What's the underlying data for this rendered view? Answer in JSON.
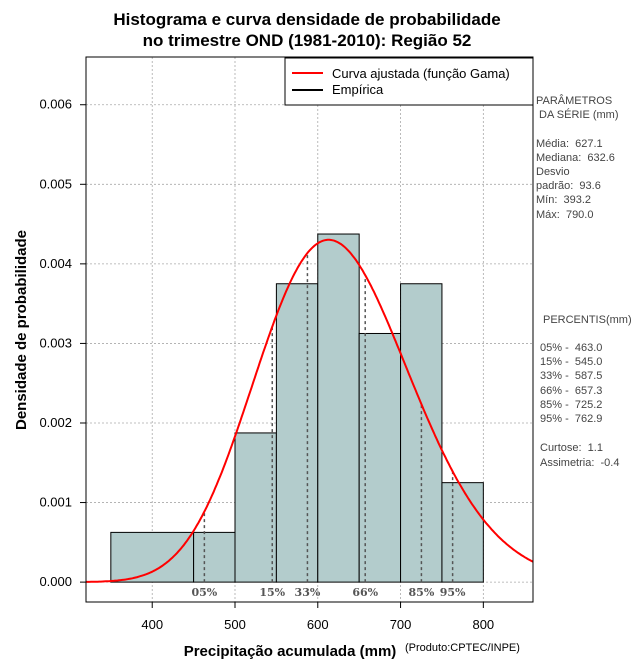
{
  "chart_data": {
    "type": "histogram",
    "title": [
      "Histograma e curva densidade de probabilidade",
      "no trimestre OND (1981-2010): Região 52"
    ],
    "xlabel": "Precipitação acumulada (mm)",
    "ylabel": "Densidade de probabilidade",
    "credit": "(Produto:CPTEC/INPE)",
    "xlim": [
      320,
      860
    ],
    "ylim": [
      -0.00025,
      0.0066
    ],
    "xticks": [
      400,
      500,
      600,
      700,
      800
    ],
    "yticks": [
      0.0,
      0.001,
      0.002,
      0.003,
      0.004,
      0.005,
      0.006
    ],
    "ytick_labels": [
      "0.000",
      "0.001",
      "0.002",
      "0.003",
      "0.004",
      "0.005",
      "0.006"
    ],
    "bins": [
      {
        "start": 350,
        "end": 450,
        "density": 0.000625
      },
      {
        "start": 450,
        "end": 500,
        "density": 0.000625
      },
      {
        "start": 500,
        "end": 550,
        "density": 0.001875
      },
      {
        "start": 550,
        "end": 600,
        "density": 0.00375
      },
      {
        "start": 600,
        "end": 650,
        "density": 0.004375
      },
      {
        "start": 650,
        "end": 700,
        "density": 0.003125
      },
      {
        "start": 700,
        "end": 750,
        "density": 0.00375
      },
      {
        "start": 750,
        "end": 800,
        "density": 0.00125
      }
    ],
    "fitted_curve": {
      "distribution": "gamma",
      "mean": 627.1,
      "sd": 93.6,
      "mode_density": 0.00431
    },
    "percentiles": [
      {
        "label": "05%",
        "value": 463.0
      },
      {
        "label": "15%",
        "value": 545.0
      },
      {
        "label": "33%",
        "value": 587.5
      },
      {
        "label": "66%",
        "value": 657.3
      },
      {
        "label": "85%",
        "value": 725.2
      },
      {
        "label": "95%",
        "value": 762.9
      }
    ],
    "legend": [
      {
        "label": "Curva ajustada (função Gama)",
        "color": "#ff0000"
      },
      {
        "label": "Empírica",
        "color": "#000000"
      }
    ],
    "legend_position": "top-right",
    "grid": true,
    "colors": {
      "bar_fill": "#b3cccc",
      "curve": "#ff0000",
      "grid": "#aaaaaa"
    }
  },
  "side_panel": {
    "params_heading": [
      "PARÂMETROS",
      " DA SÉRIE (mm)"
    ],
    "params": [
      "Média:  627.1",
      "Mediana:  632.6",
      "Desvio",
      "padrão:  93.6",
      "Mín:  393.2",
      "Máx:  790.0"
    ],
    "pct_heading": "PERCENTIS(mm)",
    "pct_lines": [
      "05% -  463.0",
      "15% -  545.0",
      "33% -  587.5",
      "66% -  657.3",
      "85% -  725.2",
      "95% -  762.9"
    ],
    "stats": [
      "Curtose:  1.1",
      "Assimetria:  -0.4"
    ]
  }
}
